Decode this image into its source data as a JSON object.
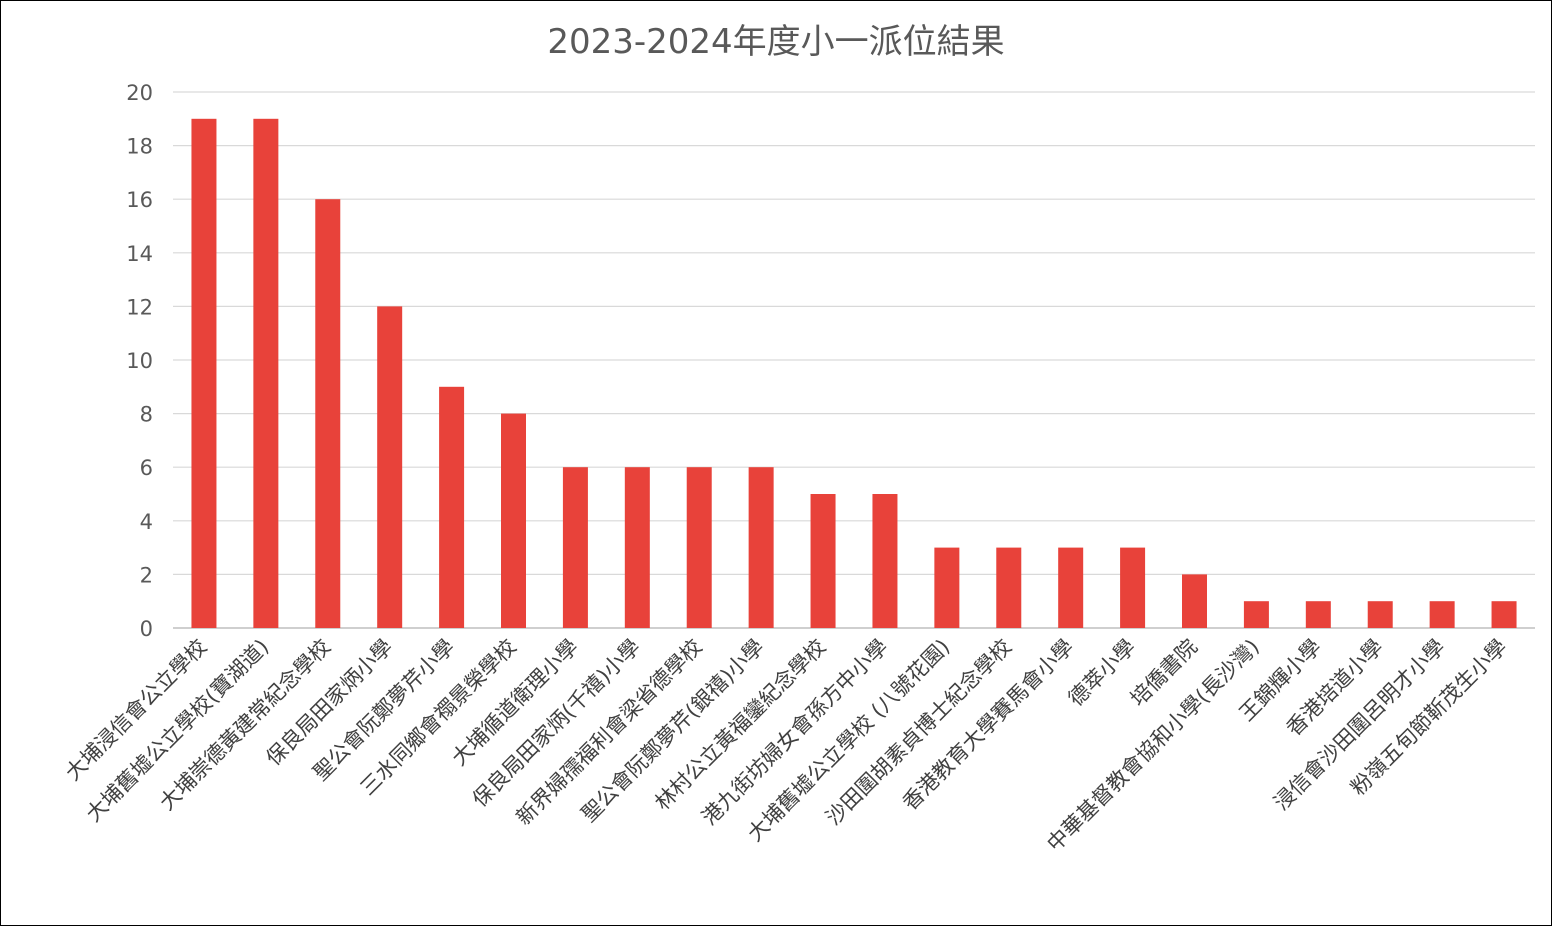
{
  "chart_data": {
    "type": "bar",
    "title": "2023-2024年度小一派位結果",
    "xlabel": "",
    "ylabel": "",
    "ylim": [
      0,
      20
    ],
    "yticks": [
      0,
      2,
      4,
      6,
      8,
      10,
      12,
      14,
      16,
      18,
      20
    ],
    "grid": true,
    "legend": "none",
    "bar_color": "#E8423A",
    "categories": [
      "大埔浸信會公立學校",
      "大埔舊墟公立學校(寶湖道)",
      "大埔崇德黃建常紀念學校",
      "保良局田家炳小學",
      "聖公會阮鄭夢芹小學",
      "三水同鄉會禤景榮學校",
      "大埔循道衛理小學",
      "保良局田家炳(千禧)小學",
      "新界婦孺福利會梁省德學校",
      "聖公會阮鄭夢芹(銀禧)小學",
      "林村公立黃福鑾紀念學校",
      "港九街坊婦女會孫方中小學",
      "大埔舊墟公立學校 (八號花園)",
      "沙田圍胡素貞博士紀念學校",
      "香港教育大學賽馬會小學",
      "德萃小學",
      "培僑書院",
      "中華基督教會協和小學(長沙灣)",
      "王錦輝小學",
      "香港培道小學",
      "浸信會沙田圍呂明才小學",
      "粉嶺五旬節靳茂生小學"
    ],
    "values": [
      19,
      19,
      16,
      12,
      9,
      8,
      6,
      6,
      6,
      6,
      5,
      5,
      3,
      3,
      3,
      3,
      2,
      1,
      1,
      1,
      1,
      1
    ]
  }
}
